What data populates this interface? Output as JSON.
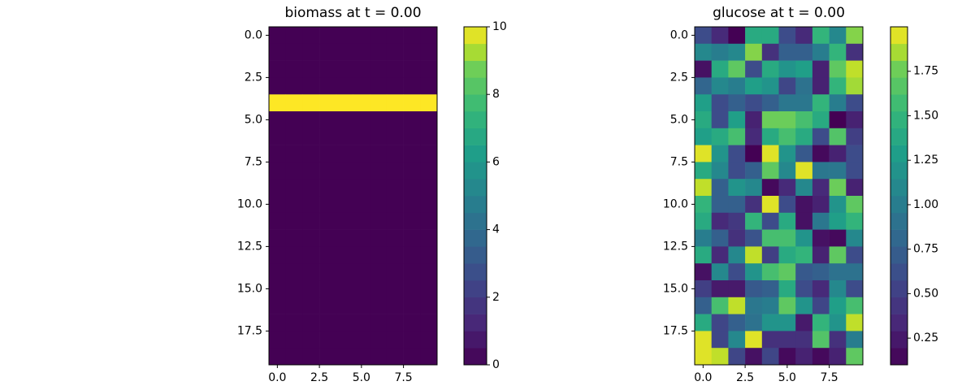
{
  "chart_data": [
    {
      "type": "heatmap",
      "title": "biomass at t = 0.00",
      "colormap": "viridis",
      "z": [
        [
          0,
          0,
          0,
          0,
          0,
          0,
          0,
          0,
          0,
          0
        ],
        [
          0,
          0,
          0,
          0,
          0,
          0,
          0,
          0,
          0,
          0
        ],
        [
          0,
          0,
          0,
          0,
          0,
          0,
          0,
          0,
          0,
          0
        ],
        [
          0,
          0,
          0,
          0,
          0,
          0,
          0,
          0,
          0,
          0
        ],
        [
          10,
          10,
          10,
          10,
          10,
          10,
          10,
          10,
          10,
          10
        ],
        [
          0,
          0,
          0,
          0,
          0,
          0,
          0,
          0,
          0,
          0
        ],
        [
          0,
          0,
          0,
          0,
          0,
          0,
          0,
          0,
          0,
          0
        ],
        [
          0,
          0,
          0,
          0,
          0,
          0,
          0,
          0,
          0,
          0
        ],
        [
          0,
          0,
          0,
          0,
          0,
          0,
          0,
          0,
          0,
          0
        ],
        [
          0,
          0,
          0,
          0,
          0,
          0,
          0,
          0,
          0,
          0
        ],
        [
          0,
          0,
          0,
          0,
          0,
          0,
          0,
          0,
          0,
          0
        ],
        [
          0,
          0,
          0,
          0,
          0,
          0,
          0,
          0,
          0,
          0
        ],
        [
          0,
          0,
          0,
          0,
          0,
          0,
          0,
          0,
          0,
          0
        ],
        [
          0,
          0,
          0,
          0,
          0,
          0,
          0,
          0,
          0,
          0
        ],
        [
          0,
          0,
          0,
          0,
          0,
          0,
          0,
          0,
          0,
          0
        ],
        [
          0,
          0,
          0,
          0,
          0,
          0,
          0,
          0,
          0,
          0
        ],
        [
          0,
          0,
          0,
          0,
          0,
          0,
          0,
          0,
          0,
          0
        ],
        [
          0,
          0,
          0,
          0,
          0,
          0,
          0,
          0,
          0,
          0
        ],
        [
          0,
          0,
          0,
          0,
          0,
          0,
          0,
          0,
          0,
          0
        ],
        [
          0,
          0,
          0,
          0,
          0,
          0,
          0,
          0,
          0,
          0
        ]
      ],
      "xlim": [
        -0.5,
        9.5
      ],
      "ylim": [
        19.5,
        -0.5
      ],
      "xticks": [
        {
          "value": 0,
          "label": "0.0"
        },
        2.5,
        {
          "value": 5,
          "label": "5.0"
        },
        7.5
      ],
      "yticks": [
        {
          "value": 0,
          "label": "0.0"
        },
        2.5,
        {
          "value": 5,
          "label": "5.0"
        },
        7.5,
        {
          "value": 10,
          "label": "10.0"
        },
        12.5,
        {
          "value": 15,
          "label": "15.0"
        },
        17.5
      ],
      "clim": [
        0,
        10
      ],
      "cticks": [
        0,
        2,
        4,
        6,
        8,
        10
      ]
    },
    {
      "type": "heatmap",
      "title": "glucose at t = 0.00",
      "colormap": "viridis",
      "z": [
        [
          0.6,
          0.35,
          0.1,
          1.4,
          1.4,
          0.6,
          0.35,
          1.5,
          1.1,
          1.8
        ],
        [
          1.1,
          1.0,
          1.1,
          1.8,
          0.4,
          0.75,
          0.75,
          1.0,
          1.5,
          0.4
        ],
        [
          0.2,
          1.4,
          1.7,
          0.6,
          1.4,
          1.2,
          1.3,
          0.3,
          1.7,
          1.9
        ],
        [
          0.8,
          1.1,
          1.0,
          1.3,
          1.2,
          0.55,
          0.9,
          0.3,
          1.5,
          1.85
        ],
        [
          1.3,
          0.6,
          0.75,
          0.6,
          0.75,
          0.95,
          0.95,
          1.5,
          1.0,
          0.6
        ],
        [
          1.4,
          0.6,
          1.3,
          0.3,
          1.75,
          1.75,
          1.6,
          1.4,
          0.1,
          0.3
        ],
        [
          1.3,
          1.4,
          1.6,
          0.35,
          1.4,
          1.6,
          1.4,
          0.6,
          1.65,
          0.5
        ],
        [
          1.95,
          1.2,
          0.6,
          0.1,
          1.95,
          1.2,
          0.7,
          0.15,
          0.3,
          0.6
        ],
        [
          1.4,
          1.1,
          0.6,
          0.75,
          1.7,
          1.1,
          1.95,
          0.95,
          0.95,
          0.6
        ],
        [
          1.9,
          0.75,
          1.2,
          1.1,
          0.15,
          0.35,
          1.1,
          0.35,
          1.75,
          0.3
        ],
        [
          1.5,
          0.75,
          0.75,
          0.4,
          1.95,
          0.6,
          0.2,
          0.3,
          1.2,
          1.7
        ],
        [
          1.4,
          0.35,
          0.45,
          1.5,
          0.6,
          1.4,
          0.2,
          0.95,
          1.3,
          1.5
        ],
        [
          1.0,
          0.75,
          0.4,
          0.65,
          1.6,
          1.6,
          1.2,
          0.2,
          0.15,
          1.1
        ],
        [
          1.4,
          0.35,
          1.1,
          1.9,
          0.5,
          1.4,
          1.5,
          0.3,
          1.7,
          0.6
        ],
        [
          0.2,
          1.1,
          0.6,
          1.2,
          1.6,
          1.7,
          0.7,
          0.75,
          0.9,
          0.9
        ],
        [
          0.5,
          0.25,
          0.25,
          0.7,
          0.75,
          1.4,
          0.6,
          0.35,
          1.1,
          0.6
        ],
        [
          0.75,
          1.6,
          1.9,
          0.95,
          1.0,
          1.7,
          1.2,
          0.55,
          1.3,
          1.6
        ],
        [
          1.4,
          0.55,
          0.75,
          0.9,
          1.2,
          1.2,
          0.25,
          1.5,
          1.2,
          1.9
        ],
        [
          1.95,
          0.55,
          1.1,
          1.95,
          0.4,
          0.4,
          0.4,
          1.65,
          0.4,
          1.0
        ],
        [
          1.95,
          1.9,
          0.55,
          0.2,
          0.55,
          0.15,
          0.3,
          0.15,
          0.3,
          1.7
        ]
      ],
      "xlim": [
        -0.5,
        9.5
      ],
      "ylim": [
        19.5,
        -0.5
      ],
      "xticks": [
        {
          "value": 0,
          "label": "0.0"
        },
        2.5,
        {
          "value": 5,
          "label": "5.0"
        },
        7.5
      ],
      "yticks": [
        {
          "value": 0,
          "label": "0.0"
        },
        2.5,
        {
          "value": 5,
          "label": "5.0"
        },
        7.5,
        {
          "value": 10,
          "label": "10.0"
        },
        12.5,
        {
          "value": 15,
          "label": "15.0"
        },
        17.5
      ],
      "clim": [
        0.1,
        2.0
      ],
      "cticks": [
        0.25,
        {
          "value": 0.5,
          "label": "0.50"
        },
        0.75,
        {
          "value": 1,
          "label": "1.00"
        },
        1.25,
        {
          "value": 1.5,
          "label": "1.50"
        },
        1.75
      ]
    }
  ]
}
